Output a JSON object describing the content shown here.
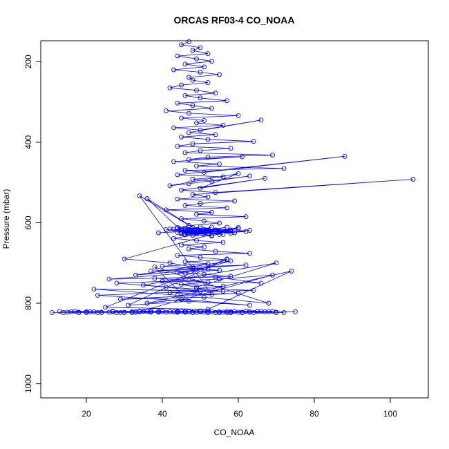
{
  "chart_data": {
    "type": "scatter",
    "title": "ORCAS RF03-4 CO_NOAA",
    "xlabel": "CO_NOAA",
    "ylabel": "Pressure (mbar)",
    "xlim": [
      8,
      110
    ],
    "ylim": [
      1035,
      148
    ],
    "y_inverted": true,
    "xticks": [
      20,
      40,
      60,
      80,
      100
    ],
    "yticks": [
      200,
      400,
      600,
      800,
      1000
    ],
    "grid": false,
    "legend": "none",
    "marker": "open-circle",
    "connected": true,
    "color": "#0000ff",
    "series": [
      {
        "x": [
          47,
          45,
          50,
          48,
          52,
          44,
          49,
          53,
          46,
          51,
          43,
          50,
          55,
          47,
          48,
          52,
          45,
          42,
          49,
          54,
          46,
          50,
          57,
          44,
          48,
          53,
          41,
          47,
          60,
          45,
          51,
          49,
          56,
          43,
          50,
          66,
          47,
          54,
          45,
          52,
          64,
          48,
          44,
          58,
          50,
          46,
          69,
          52,
          47,
          61,
          43,
          55,
          49,
          72,
          46,
          51,
          88,
          44,
          56,
          48,
          53,
          63,
          47,
          42,
          60,
          50,
          67,
          45,
          54,
          106,
          48,
          52,
          44,
          59,
          50,
          46,
          57,
          41,
          53,
          49,
          62,
          45,
          51,
          55,
          47,
          44,
          58,
          50,
          36,
          46,
          53,
          60,
          43,
          49,
          56,
          45,
          51,
          47,
          54,
          63,
          44,
          50,
          57,
          46,
          52,
          40,
          48,
          55,
          44,
          51,
          58,
          38,
          47,
          52,
          45,
          56,
          49,
          64,
          42,
          53,
          34,
          48,
          57,
          45,
          51,
          39,
          60,
          46,
          54,
          44,
          50,
          58,
          47,
          53,
          43,
          49,
          62,
          46,
          55,
          41,
          50,
          57,
          45,
          52,
          48,
          44,
          59,
          51,
          46,
          56,
          42,
          50,
          63,
          47,
          53,
          45,
          58,
          44,
          51,
          49,
          55,
          30,
          42,
          48,
          62,
          37,
          52,
          33,
          58,
          46,
          26,
          54,
          66,
          40,
          49,
          70,
          35,
          56,
          22,
          44,
          60,
          29,
          51,
          68,
          38,
          47,
          31,
          57,
          25,
          52,
          74,
          36,
          45,
          63,
          23,
          50,
          41,
          28,
          55,
          69,
          34,
          48,
          20,
          61,
          44,
          39,
          53,
          72,
          27,
          46,
          58,
          32,
          65,
          18,
          43,
          55,
          37,
          49,
          67,
          30,
          57,
          24,
          42,
          64,
          35,
          51,
          75,
          28,
          46,
          60,
          21,
          54,
          39,
          70,
          33,
          48,
          62,
          26,
          44,
          58,
          15,
          36,
          52,
          68,
          30,
          45,
          61,
          22,
          56,
          40,
          14,
          63,
          33,
          50,
          70,
          27,
          44,
          59,
          18,
          47,
          37,
          65,
          24,
          52,
          41,
          13,
          57,
          32,
          48,
          66,
          20,
          43,
          61,
          35,
          54,
          16,
          46,
          69,
          29,
          50,
          39,
          62,
          23,
          55,
          44,
          17,
          58,
          34,
          49,
          11,
          47,
          63,
          36
        ],
        "y": [
          150,
          158,
          165,
          172,
          180,
          186,
          193,
          199,
          206,
          213,
          220,
          226,
          232,
          239,
          246,
          252,
          258,
          265,
          271,
          278,
          284,
          290,
          297,
          303,
          309,
          316,
          322,
          328,
          334,
          340,
          346,
          352,
          358,
          364,
          370,
          345,
          376,
          381,
          387,
          393,
          398,
          404,
          410,
          415,
          421,
          426,
          432,
          437,
          443,
          436,
          448,
          454,
          459,
          465,
          470,
          475,
          435,
          481,
          486,
          492,
          497,
          484,
          503,
          508,
          478,
          514,
          490,
          519,
          525,
          492,
          530,
          536,
          541,
          546,
          552,
          557,
          563,
          568,
          574,
          579,
          585,
          590,
          596,
          601,
          607,
          612,
          618,
          623,
          540,
          628,
          633,
          612,
          639,
          644,
          649,
          655,
          660,
          665,
          671,
          676,
          681,
          686,
          692,
          697,
          702,
          708,
          713,
          718,
          723,
          728,
          733,
          738,
          743,
          748,
          753,
          758,
          763,
          768,
          773,
          778,
          533,
          612,
          621,
          627,
          619,
          625,
          615,
          630,
          618,
          624,
          610,
          626,
          620,
          632,
          616,
          628,
          622,
          614,
          629,
          617,
          623,
          611,
          627,
          619,
          631,
          613,
          625,
          621,
          617,
          629,
          615,
          623,
          619,
          627,
          611,
          625,
          621,
          613,
          629,
          617,
          623,
          690,
          700,
          710,
          705,
          720,
          715,
          730,
          695,
          725,
          740,
          735,
          750,
          745,
          760,
          700,
          755,
          770,
          765,
          780,
          775,
          790,
          785,
          800,
          710,
          795,
          805,
          690,
          810,
          815,
          720,
          800,
          790,
          805,
          780,
          770,
          760,
          750,
          740,
          730,
          820,
          822,
          821,
          823,
          820,
          822,
          821,
          823,
          820,
          822,
          821,
          823,
          820,
          822,
          821,
          823,
          820,
          822,
          821,
          823,
          820,
          822,
          821,
          823,
          820,
          822,
          821,
          823,
          820,
          822,
          821,
          823,
          820,
          822,
          821,
          823,
          820,
          822,
          821,
          823,
          822,
          820,
          823,
          821,
          822,
          820,
          823,
          821,
          822,
          820,
          823,
          821,
          822,
          820,
          823,
          821,
          822,
          820,
          823,
          821,
          822,
          820,
          823,
          821,
          822,
          820,
          823,
          821,
          822,
          820,
          823,
          821,
          822,
          820,
          823,
          821,
          822,
          820,
          823,
          821,
          822,
          820,
          823,
          821,
          822,
          820,
          823,
          821,
          822,
          823,
          821,
          822,
          820
        ]
      }
    ]
  }
}
